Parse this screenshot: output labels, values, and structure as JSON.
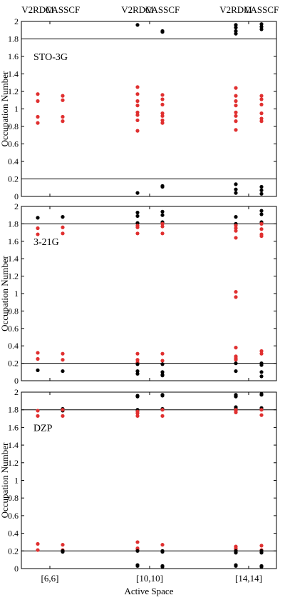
{
  "chart_data": {
    "type": "scatter",
    "xlabel": "Active Space",
    "ylabel": "Occupation Number",
    "x_categories": [
      "[6,6]",
      "[10,10]",
      "[14,14]"
    ],
    "column_labels": [
      "V2RDM",
      "CASSCF",
      "V2RDM",
      "CASSCF",
      "V2RDM",
      "CASSCF"
    ],
    "ylim": [
      0,
      2
    ],
    "yticks": [
      "0",
      "0.2",
      "0.4",
      "0.6",
      "0.8",
      "1",
      "1.2",
      "1.4",
      "1.6",
      "1.8",
      "2"
    ],
    "threshold_lines": [
      0.2,
      1.8
    ],
    "grid": false,
    "colors": {
      "red": "#e03030",
      "black": "#000000"
    },
    "panels": [
      {
        "label": "STO-3G",
        "series": [
          {
            "column": 0,
            "points": [
              {
                "y": 1.17,
                "c": "red"
              },
              {
                "y": 1.09,
                "c": "red"
              },
              {
                "y": 0.91,
                "c": "red"
              },
              {
                "y": 0.84,
                "c": "red"
              }
            ]
          },
          {
            "column": 1,
            "points": [
              {
                "y": 1.15,
                "c": "red"
              },
              {
                "y": 1.1,
                "c": "red"
              },
              {
                "y": 0.91,
                "c": "red"
              },
              {
                "y": 0.86,
                "c": "red"
              }
            ]
          },
          {
            "column": 2,
            "points": [
              {
                "y": 1.96,
                "c": "black"
              },
              {
                "y": 1.25,
                "c": "red"
              },
              {
                "y": 1.17,
                "c": "red"
              },
              {
                "y": 1.09,
                "c": "red"
              },
              {
                "y": 1.04,
                "c": "red"
              },
              {
                "y": 0.96,
                "c": "red"
              },
              {
                "y": 0.93,
                "c": "red"
              },
              {
                "y": 0.87,
                "c": "red"
              },
              {
                "y": 0.75,
                "c": "red"
              },
              {
                "y": 0.04,
                "c": "black"
              }
            ]
          },
          {
            "column": 3,
            "points": [
              {
                "y": 1.89,
                "c": "black"
              },
              {
                "y": 1.88,
                "c": "black"
              },
              {
                "y": 1.16,
                "c": "red"
              },
              {
                "y": 1.11,
                "c": "red"
              },
              {
                "y": 1.05,
                "c": "red"
              },
              {
                "y": 0.95,
                "c": "red"
              },
              {
                "y": 0.92,
                "c": "red"
              },
              {
                "y": 0.87,
                "c": "red"
              },
              {
                "y": 0.84,
                "c": "red"
              },
              {
                "y": 0.12,
                "c": "black"
              },
              {
                "y": 0.11,
                "c": "black"
              }
            ]
          },
          {
            "column": 4,
            "points": [
              {
                "y": 1.96,
                "c": "black"
              },
              {
                "y": 1.93,
                "c": "black"
              },
              {
                "y": 1.89,
                "c": "black"
              },
              {
                "y": 1.86,
                "c": "black"
              },
              {
                "y": 1.24,
                "c": "red"
              },
              {
                "y": 1.15,
                "c": "red"
              },
              {
                "y": 1.09,
                "c": "red"
              },
              {
                "y": 1.04,
                "c": "red"
              },
              {
                "y": 0.96,
                "c": "red"
              },
              {
                "y": 0.92,
                "c": "red"
              },
              {
                "y": 0.86,
                "c": "red"
              },
              {
                "y": 0.76,
                "c": "red"
              },
              {
                "y": 0.14,
                "c": "black"
              },
              {
                "y": 0.08,
                "c": "black"
              },
              {
                "y": 0.04,
                "c": "black"
              }
            ]
          },
          {
            "column": 5,
            "points": [
              {
                "y": 1.97,
                "c": "black"
              },
              {
                "y": 1.94,
                "c": "black"
              },
              {
                "y": 1.91,
                "c": "black"
              },
              {
                "y": 1.15,
                "c": "red"
              },
              {
                "y": 1.11,
                "c": "red"
              },
              {
                "y": 1.05,
                "c": "red"
              },
              {
                "y": 0.95,
                "c": "red"
              },
              {
                "y": 0.89,
                "c": "red"
              },
              {
                "y": 0.86,
                "c": "red"
              },
              {
                "y": 0.11,
                "c": "black"
              },
              {
                "y": 0.07,
                "c": "black"
              },
              {
                "y": 0.03,
                "c": "black"
              }
            ]
          }
        ]
      },
      {
        "label": "3-21G",
        "series": [
          {
            "column": 0,
            "points": [
              {
                "y": 1.87,
                "c": "black"
              },
              {
                "y": 1.75,
                "c": "red"
              },
              {
                "y": 1.68,
                "c": "red"
              },
              {
                "y": 0.32,
                "c": "red"
              },
              {
                "y": 0.25,
                "c": "red"
              },
              {
                "y": 0.12,
                "c": "black"
              }
            ]
          },
          {
            "column": 1,
            "points": [
              {
                "y": 1.88,
                "c": "black"
              },
              {
                "y": 1.76,
                "c": "red"
              },
              {
                "y": 1.69,
                "c": "red"
              },
              {
                "y": 0.31,
                "c": "red"
              },
              {
                "y": 0.24,
                "c": "red"
              },
              {
                "y": 0.11,
                "c": "black"
              }
            ]
          },
          {
            "column": 2,
            "points": [
              {
                "y": 1.93,
                "c": "black"
              },
              {
                "y": 1.89,
                "c": "black"
              },
              {
                "y": 1.81,
                "c": "black"
              },
              {
                "y": 1.78,
                "c": "red"
              },
              {
                "y": 1.76,
                "c": "red"
              },
              {
                "y": 1.69,
                "c": "red"
              },
              {
                "y": 0.31,
                "c": "red"
              },
              {
                "y": 0.24,
                "c": "red"
              },
              {
                "y": 0.21,
                "c": "red"
              },
              {
                "y": 0.19,
                "c": "black"
              },
              {
                "y": 0.11,
                "c": "black"
              },
              {
                "y": 0.08,
                "c": "black"
              }
            ]
          },
          {
            "column": 3,
            "points": [
              {
                "y": 1.94,
                "c": "black"
              },
              {
                "y": 1.9,
                "c": "black"
              },
              {
                "y": 1.82,
                "c": "black"
              },
              {
                "y": 1.8,
                "c": "red"
              },
              {
                "y": 1.77,
                "c": "red"
              },
              {
                "y": 1.69,
                "c": "red"
              },
              {
                "y": 0.31,
                "c": "red"
              },
              {
                "y": 0.23,
                "c": "red"
              },
              {
                "y": 0.19,
                "c": "black"
              },
              {
                "y": 0.1,
                "c": "black"
              },
              {
                "y": 0.07,
                "c": "black"
              },
              {
                "y": 0.06,
                "c": "black"
              }
            ]
          },
          {
            "column": 4,
            "points": [
              {
                "y": 1.88,
                "c": "black"
              },
              {
                "y": 1.8,
                "c": "black"
              },
              {
                "y": 1.78,
                "c": "red"
              },
              {
                "y": 1.75,
                "c": "red"
              },
              {
                "y": 1.72,
                "c": "red"
              },
              {
                "y": 1.64,
                "c": "red"
              },
              {
                "y": 1.02,
                "c": "red"
              },
              {
                "y": 0.96,
                "c": "red"
              },
              {
                "y": 0.38,
                "c": "red"
              },
              {
                "y": 0.28,
                "c": "red"
              },
              {
                "y": 0.26,
                "c": "red"
              },
              {
                "y": 0.24,
                "c": "red"
              },
              {
                "y": 0.2,
                "c": "black"
              },
              {
                "y": 0.11,
                "c": "black"
              }
            ]
          },
          {
            "column": 5,
            "points": [
              {
                "y": 1.95,
                "c": "black"
              },
              {
                "y": 1.91,
                "c": "black"
              },
              {
                "y": 1.82,
                "c": "black"
              },
              {
                "y": 1.8,
                "c": "red"
              },
              {
                "y": 1.74,
                "c": "red"
              },
              {
                "y": 1.68,
                "c": "red"
              },
              {
                "y": 1.66,
                "c": "red"
              },
              {
                "y": 0.34,
                "c": "red"
              },
              {
                "y": 0.31,
                "c": "red"
              },
              {
                "y": 0.2,
                "c": "black"
              },
              {
                "y": 0.18,
                "c": "black"
              },
              {
                "y": 0.1,
                "c": "black"
              },
              {
                "y": 0.05,
                "c": "black"
              }
            ]
          }
        ]
      },
      {
        "label": "DZP",
        "series": [
          {
            "column": 0,
            "points": [
              {
                "y": 1.79,
                "c": "red"
              },
              {
                "y": 1.73,
                "c": "red"
              },
              {
                "y": 0.28,
                "c": "red"
              },
              {
                "y": 0.21,
                "c": "red"
              }
            ]
          },
          {
            "column": 1,
            "points": [
              {
                "y": 1.81,
                "c": "black"
              },
              {
                "y": 1.79,
                "c": "black"
              },
              {
                "y": 1.8,
                "c": "red"
              },
              {
                "y": 1.73,
                "c": "red"
              },
              {
                "y": 0.27,
                "c": "red"
              },
              {
                "y": 0.21,
                "c": "red"
              },
              {
                "y": 0.2,
                "c": "black"
              },
              {
                "y": 0.19,
                "c": "black"
              }
            ]
          },
          {
            "column": 2,
            "points": [
              {
                "y": 1.96,
                "c": "black"
              },
              {
                "y": 1.95,
                "c": "black"
              },
              {
                "y": 1.8,
                "c": "black"
              },
              {
                "y": 1.78,
                "c": "red"
              },
              {
                "y": 1.76,
                "c": "red"
              },
              {
                "y": 1.73,
                "c": "red"
              },
              {
                "y": 0.3,
                "c": "red"
              },
              {
                "y": 0.23,
                "c": "red"
              },
              {
                "y": 0.21,
                "c": "red"
              },
              {
                "y": 0.2,
                "c": "black"
              },
              {
                "y": 0.04,
                "c": "black"
              },
              {
                "y": 0.03,
                "c": "black"
              }
            ]
          },
          {
            "column": 3,
            "points": [
              {
                "y": 1.97,
                "c": "black"
              },
              {
                "y": 1.96,
                "c": "black"
              },
              {
                "y": 1.81,
                "c": "black"
              },
              {
                "y": 1.8,
                "c": "red"
              },
              {
                "y": 1.73,
                "c": "red"
              },
              {
                "y": 0.27,
                "c": "red"
              },
              {
                "y": 0.2,
                "c": "black"
              },
              {
                "y": 0.19,
                "c": "black"
              },
              {
                "y": 0.03,
                "c": "black"
              },
              {
                "y": 0.02,
                "c": "black"
              }
            ]
          },
          {
            "column": 4,
            "points": [
              {
                "y": 1.97,
                "c": "black"
              },
              {
                "y": 1.96,
                "c": "black"
              },
              {
                "y": 1.95,
                "c": "black"
              },
              {
                "y": 1.83,
                "c": "black"
              },
              {
                "y": 1.81,
                "c": "black"
              },
              {
                "y": 1.8,
                "c": "red"
              },
              {
                "y": 1.79,
                "c": "red"
              },
              {
                "y": 1.77,
                "c": "red"
              },
              {
                "y": 0.25,
                "c": "red"
              },
              {
                "y": 0.23,
                "c": "red"
              },
              {
                "y": 0.21,
                "c": "red"
              },
              {
                "y": 0.2,
                "c": "black"
              },
              {
                "y": 0.18,
                "c": "black"
              },
              {
                "y": 0.04,
                "c": "black"
              },
              {
                "y": 0.03,
                "c": "black"
              }
            ]
          },
          {
            "column": 5,
            "points": [
              {
                "y": 1.98,
                "c": "black"
              },
              {
                "y": 1.97,
                "c": "black"
              },
              {
                "y": 1.82,
                "c": "black"
              },
              {
                "y": 1.8,
                "c": "red"
              },
              {
                "y": 1.74,
                "c": "red"
              },
              {
                "y": 0.26,
                "c": "red"
              },
              {
                "y": 0.21,
                "c": "red"
              },
              {
                "y": 0.2,
                "c": "black"
              },
              {
                "y": 0.18,
                "c": "black"
              },
              {
                "y": 0.03,
                "c": "black"
              },
              {
                "y": 0.02,
                "c": "black"
              }
            ]
          }
        ]
      }
    ]
  }
}
